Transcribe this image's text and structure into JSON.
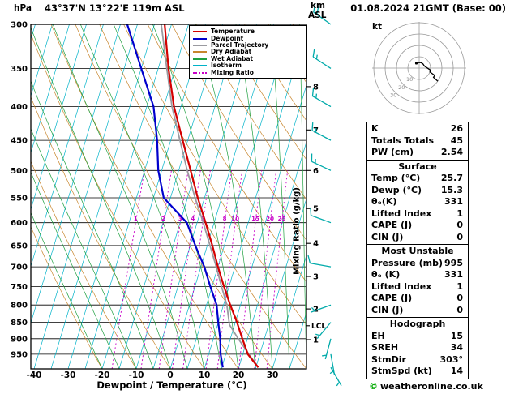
{
  "header": {
    "location": "43°37'N 13°22'E 119m ASL",
    "datetime": "01.08.2024 21GMT (Base: 00)"
  },
  "labels": {
    "hpa": "hPa",
    "km": "km",
    "asl": "ASL",
    "kt": "kt",
    "x_axis": "Dewpoint / Temperature (°C)",
    "mixing_axis": "Mixing Ratio (g/kg)",
    "lcl": "LCL"
  },
  "legend": {
    "items": [
      {
        "label": "Temperature",
        "color": "#d40000",
        "style": "solid"
      },
      {
        "label": "Dewpoint",
        "color": "#0000cc",
        "style": "solid"
      },
      {
        "label": "Parcel Trajectory",
        "color": "#9a9aa0",
        "style": "solid"
      },
      {
        "label": "Dry Adiabat",
        "color": "#c8862d",
        "style": "solid"
      },
      {
        "label": "Wet Adiabat",
        "color": "#1fa040",
        "style": "solid"
      },
      {
        "label": "Isotherm",
        "color": "#00b2c8",
        "style": "solid"
      },
      {
        "label": "Mixing Ratio",
        "color": "#c800c8",
        "style": "dotted"
      }
    ]
  },
  "panel": {
    "stats": [
      {
        "label": "K",
        "value": "26"
      },
      {
        "label": "Totals Totals",
        "value": "45"
      },
      {
        "label": "PW (cm)",
        "value": "2.54"
      }
    ],
    "surface": {
      "title": "Surface",
      "rows": [
        {
          "label": "Temp (°C)",
          "value": "25.7"
        },
        {
          "label": "Dewp (°C)",
          "value": "15.3"
        },
        {
          "label": "θₑ(K)",
          "value": "331"
        },
        {
          "label": "Lifted Index",
          "value": "1"
        },
        {
          "label": "CAPE (J)",
          "value": "0"
        },
        {
          "label": "CIN (J)",
          "value": "0"
        }
      ]
    },
    "most_unstable": {
      "title": "Most Unstable",
      "rows": [
        {
          "label": "Pressure (mb)",
          "value": "995"
        },
        {
          "label": "θₑ (K)",
          "value": "331"
        },
        {
          "label": "Lifted Index",
          "value": "1"
        },
        {
          "label": "CAPE (J)",
          "value": "0"
        },
        {
          "label": "CIN (J)",
          "value": "0"
        }
      ]
    },
    "hodograph": {
      "title": "Hodograph",
      "rows": [
        {
          "label": "EH",
          "value": "15"
        },
        {
          "label": "SREH",
          "value": "34"
        },
        {
          "label": "StmDir",
          "value": "303°"
        },
        {
          "label": "StmSpd (kt)",
          "value": "14"
        }
      ]
    }
  },
  "footer": {
    "copyright": "©",
    "brand": "weatheronline.co.uk"
  },
  "chart_data": {
    "type": "skewt_log_p",
    "pressure_axis": {
      "unit": "hPa",
      "range": [
        300,
        1000
      ],
      "ticks": [
        300,
        350,
        400,
        450,
        500,
        550,
        600,
        650,
        700,
        750,
        800,
        850,
        900,
        950
      ]
    },
    "temp_axis": {
      "ticks": [
        -40,
        -30,
        -20,
        -10,
        0,
        10,
        20,
        30
      ],
      "range_at_surface": [
        -40,
        40
      ],
      "skew": 0.3
    },
    "km_axis": {
      "ticks": [
        {
          "km": "8",
          "p": 373
        },
        {
          "km": "7",
          "p": 434
        },
        {
          "km": "6",
          "p": 500
        },
        {
          "km": "5",
          "p": 571
        },
        {
          "km": "4",
          "p": 645
        },
        {
          "km": "3",
          "p": 724
        },
        {
          "km": "2",
          "p": 811
        },
        {
          "km": "1",
          "p": 903
        }
      ],
      "lcl_pressure": 860
    },
    "isotherms": {
      "min": -75,
      "max": 40,
      "step": 5,
      "color": "#00b2c8"
    },
    "dry_adiabats": {
      "min": -20,
      "max": 130,
      "step": 10,
      "color": "#c8862d"
    },
    "wet_adiabats": {
      "min": -20,
      "max": 40,
      "step": 5,
      "color": "#1fa040"
    },
    "mixing_ratio_lines": {
      "values": [
        1,
        2,
        3,
        4,
        5,
        8,
        10,
        15,
        20,
        25
      ],
      "label_pressure": 600,
      "top_pressure": 500,
      "color": "#c800c8"
    },
    "series": {
      "temperature": {
        "name": "Temperature",
        "color": "#d40000",
        "points": [
          [
            995,
            25.7
          ],
          [
            950,
            21.5
          ],
          [
            900,
            18.5
          ],
          [
            850,
            15.5
          ],
          [
            800,
            12.0
          ],
          [
            750,
            8.5
          ],
          [
            700,
            5.0
          ],
          [
            650,
            1.5
          ],
          [
            600,
            -2.5
          ],
          [
            550,
            -7.0
          ],
          [
            500,
            -11.5
          ],
          [
            450,
            -16.5
          ],
          [
            400,
            -22.0
          ],
          [
            350,
            -27.0
          ],
          [
            300,
            -32.0
          ]
        ]
      },
      "dewpoint": {
        "name": "Dewpoint",
        "color": "#0000cc",
        "points": [
          [
            995,
            15.3
          ],
          [
            950,
            13.5
          ],
          [
            900,
            12.0
          ],
          [
            850,
            10.0
          ],
          [
            800,
            8.0
          ],
          [
            750,
            4.5
          ],
          [
            700,
            1.0
          ],
          [
            650,
            -3.5
          ],
          [
            600,
            -8.0
          ],
          [
            550,
            -17.0
          ],
          [
            500,
            -21.0
          ],
          [
            450,
            -24.0
          ],
          [
            400,
            -28.0
          ],
          [
            350,
            -35.0
          ],
          [
            300,
            -43.0
          ]
        ]
      },
      "parcel": {
        "name": "Parcel Trajectory",
        "color": "#9a9aa0",
        "points": [
          [
            995,
            25.7
          ],
          [
            950,
            21.8
          ],
          [
            900,
            17.3
          ],
          [
            857,
            13.5
          ],
          [
            800,
            11.0
          ],
          [
            750,
            7.8
          ],
          [
            700,
            4.5
          ],
          [
            650,
            0.8
          ],
          [
            600,
            -3.2
          ],
          [
            550,
            -7.8
          ],
          [
            500,
            -12.5
          ],
          [
            450,
            -17.3
          ],
          [
            400,
            -22.6
          ],
          [
            350,
            -27.5
          ],
          [
            300,
            -33.0
          ]
        ]
      }
    },
    "wind_barbs": {
      "color": "#00aaaa",
      "levels": [
        {
          "p": 995,
          "dir": 150,
          "spd": 5
        },
        {
          "p": 950,
          "dir": 170,
          "spd": 5
        },
        {
          "p": 900,
          "dir": 195,
          "spd": 5
        },
        {
          "p": 850,
          "dir": 220,
          "spd": 5
        },
        {
          "p": 800,
          "dir": 250,
          "spd": 5
        },
        {
          "p": 700,
          "dir": 280,
          "spd": 10
        },
        {
          "p": 600,
          "dir": 290,
          "spd": 10
        },
        {
          "p": 500,
          "dir": 295,
          "spd": 15
        },
        {
          "p": 450,
          "dir": 298,
          "spd": 15
        },
        {
          "p": 400,
          "dir": 300,
          "spd": 15
        },
        {
          "p": 350,
          "dir": 303,
          "spd": 15
        },
        {
          "p": 300,
          "dir": 305,
          "spd": 20
        }
      ]
    },
    "hodograph": {
      "unit": "kt",
      "rings_kt": [
        10,
        20,
        30,
        40
      ],
      "ring_labels": [
        "10",
        "20",
        "30"
      ],
      "storm_dir": 303,
      "storm_spd_kt": 14
    }
  }
}
